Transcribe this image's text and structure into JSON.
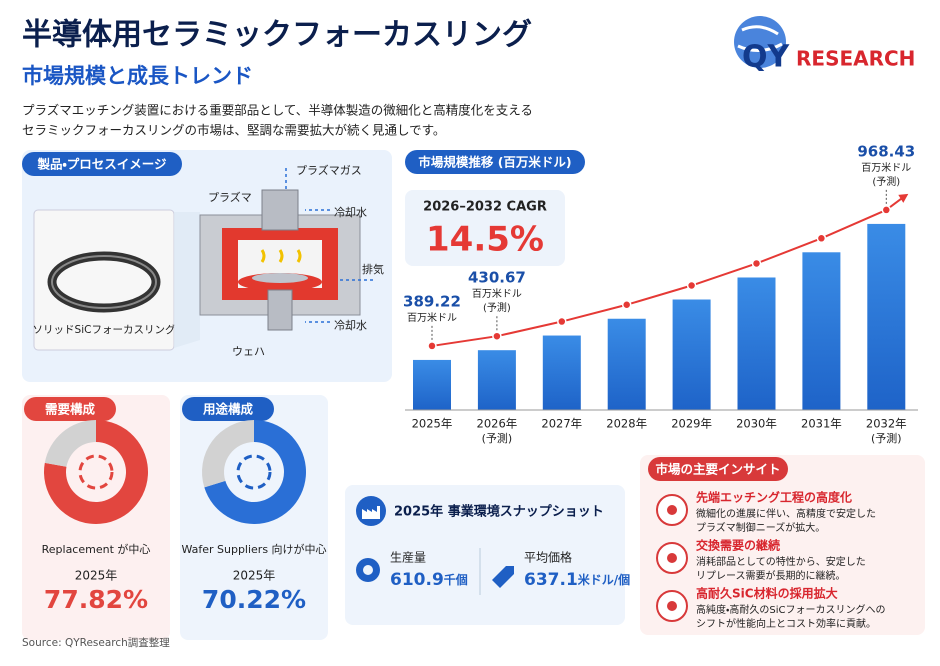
{
  "header": {
    "title": "半導体用セラミックフォーカスリング",
    "subtitle": "市場規模と成長トレンド",
    "description": [
      "プラズマエッチング装置における重要部品として、半導体製造の微細化と高精度化を支える",
      "セラミックフォーカスリングの市場は、堅調な需要拡大が続く見通しです。"
    ]
  },
  "logo": {
    "mark": "QY",
    "word": "RESEARCH"
  },
  "product": {
    "title": "製品・プロセスイメージ",
    "ring_label": "ソリッドSiCフォーカスリング",
    "labels": {
      "gas": "プラズマガス",
      "plasma": "プラズマ",
      "cooling_top": "冷却水",
      "exhaust": "排気",
      "cooling_bottom": "冷却水",
      "wafer": "ウェハ"
    }
  },
  "cagr": {
    "label": "2026–2032 CAGR",
    "value": "14.5%"
  },
  "chart_data": [
    {
      "type": "bar",
      "title": "市場規模推移 (百万米ドル)",
      "categories": [
        "2025年",
        "2026年",
        "2027年",
        "2028年",
        "2029年",
        "2030年",
        "2031年",
        "2032年"
      ],
      "category_notes": [
        null,
        "(予測)",
        null,
        null,
        null,
        null,
        null,
        "(予測)"
      ],
      "values": [
        389.22,
        430.67,
        493.1,
        564.6,
        646.5,
        740.3,
        847.6,
        968.43
      ],
      "value_labels": [
        "389.22",
        "430.67",
        null,
        null,
        null,
        null,
        null,
        "968.43"
      ],
      "value_notes": [
        [
          "百万米ドル"
        ],
        [
          "百万米ドル",
          "(予測)"
        ],
        null,
        null,
        null,
        null,
        null,
        [
          "百万米ドル",
          "(予測)"
        ]
      ],
      "ylim": [
        176,
        1000
      ],
      "color": "#2f80dd",
      "line_color": "#e53935"
    },
    {
      "type": "donut",
      "title": "需要構成",
      "caption": "Replacement が中心",
      "year": "2025年",
      "values": [
        77.82,
        22.18
      ],
      "value_labels": [
        "77.82%",
        null
      ],
      "colors": [
        "#e2463f",
        "#d2d2d2"
      ],
      "accent": "#e2463f"
    },
    {
      "type": "donut",
      "title": "用途構成",
      "caption": "Wafer Suppliers 向けが中心",
      "year": "2025年",
      "values": [
        70.22,
        29.78
      ],
      "value_labels": [
        "70.22%",
        null
      ],
      "colors": [
        "#2a6fd6",
        "#d2d2d2"
      ],
      "accent": "#1f5fc4"
    }
  ],
  "snapshot": {
    "title": "2025年 事業環境スナップショット",
    "items": [
      {
        "label": "生産量",
        "value": 610.9,
        "unit": "千個"
      },
      {
        "label": "平均価格",
        "value": 637.1,
        "unit": "米ドル/個"
      }
    ]
  },
  "insights": {
    "title": "市場の主要インサイト",
    "items": [
      {
        "title": "先端エッチング工程の高度化",
        "lines": [
          "微細化の進展に伴い、高精度で安定した",
          "プラズマ制御ニーズが拡大。"
        ]
      },
      {
        "title": "交換需要の継続",
        "lines": [
          "消耗部品としての特性から、安定した",
          "リプレース需要が長期的に継続。"
        ]
      },
      {
        "title": "高耐久SiC材料の採用拡大",
        "lines": [
          "高純度・高耐久のSiCフォーカスリングへの",
          "シフトが性能向上とコスト効率に貢献。"
        ]
      }
    ]
  },
  "source": "Source: QYResearch調査整理"
}
